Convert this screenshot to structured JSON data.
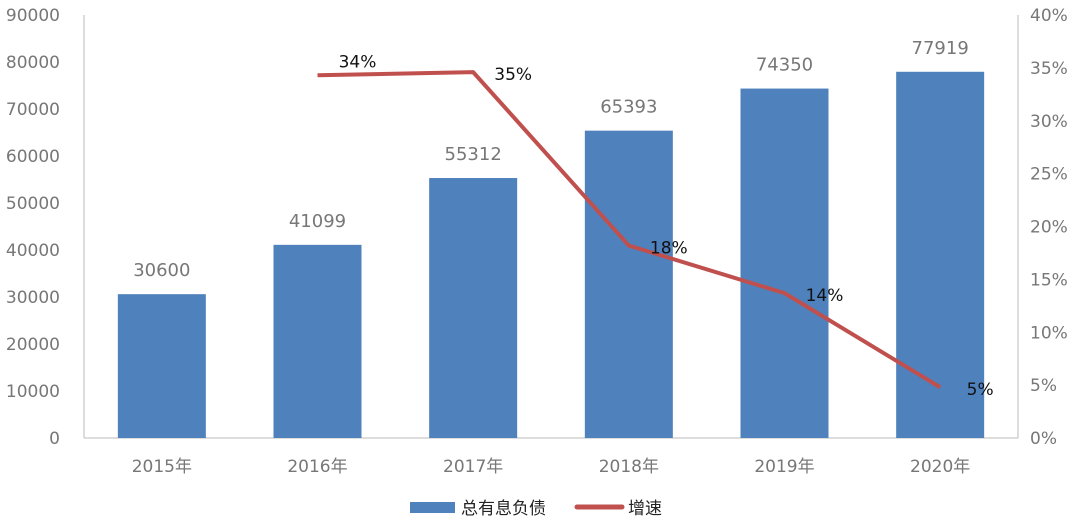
{
  "chart_data": {
    "type": "bar",
    "title": "",
    "categories": [
      "2015年",
      "2016年",
      "2017年",
      "2018年",
      "2019年",
      "2020年"
    ],
    "series": [
      {
        "name": "总有息负债",
        "type": "bar",
        "axis": "left",
        "color": "#4f81bd",
        "values": [
          30600,
          41099,
          55312,
          65393,
          74350,
          77919
        ],
        "labels": [
          "30600",
          "41099",
          "55312",
          "65393",
          "74350",
          "77919"
        ]
      },
      {
        "name": "增速",
        "type": "line",
        "axis": "right",
        "color": "#c0504d",
        "values": [
          null,
          34.3,
          34.6,
          18.2,
          13.7,
          4.8
        ],
        "labels": [
          "",
          "34%",
          "35%",
          "18%",
          "14%",
          "5%"
        ]
      }
    ],
    "left_axis": {
      "range": [
        0,
        90000
      ],
      "ticks": [
        "0",
        "10000",
        "20000",
        "30000",
        "40000",
        "50000",
        "60000",
        "70000",
        "80000",
        "90000"
      ]
    },
    "right_axis": {
      "range": [
        0,
        40
      ],
      "unit": "%",
      "ticks": [
        "0%",
        "5%",
        "10%",
        "15%",
        "20%",
        "25%",
        "30%",
        "35%",
        "40%"
      ]
    },
    "grid": false,
    "legend_position": "bottom"
  }
}
